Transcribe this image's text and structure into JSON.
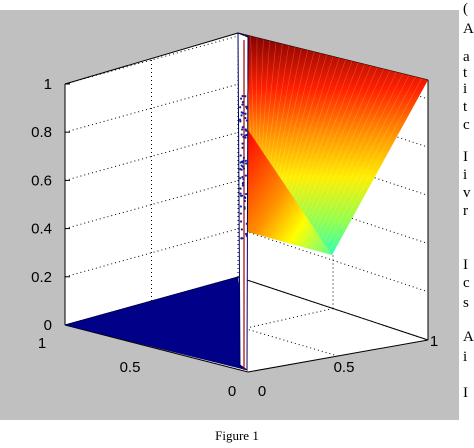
{
  "caption": "Figure 1",
  "colors": {
    "figure_background": "#c0c0c0",
    "axes_background": "#ffffff",
    "base_surface": "#000088",
    "colormap": "jet"
  },
  "side_text_fragments": [
    "(",
    "A",
    "a",
    "t",
    "i",
    "t",
    "c",
    "I",
    "i",
    "v",
    "r",
    "I",
    "c",
    "s",
    "A",
    "i",
    "I"
  ],
  "chart_data": {
    "type": "3d-surface",
    "title": "",
    "xlabel": "",
    "ylabel": "",
    "zlabel": "",
    "xlim": [
      0,
      1
    ],
    "ylim": [
      0,
      1
    ],
    "zlim": [
      0,
      1
    ],
    "xticks": [
      "0",
      "0.5",
      "1"
    ],
    "yticks": [
      "0",
      "0.5",
      "1"
    ],
    "zticks": [
      "0",
      "0.2",
      "0.4",
      "0.6",
      "0.8",
      "1"
    ],
    "grid": true,
    "surfaces": [
      {
        "name": "",
        "description_points": [
          [
            0,
            0,
            0
          ],
          [
            1,
            0,
            0
          ],
          [
            0,
            1,
            0
          ]
        ],
        "note": "flat at z=0 over triangle"
      },
      {
        "name": "",
        "corners": [
          [
            0,
            0,
            1
          ],
          [
            0,
            1,
            1
          ],
          [
            1,
            1,
            1
          ],
          [
            0.6,
            0.6,
            0.4
          ],
          [
            0,
            0.15,
            0.75
          ]
        ]
      }
    ]
  }
}
